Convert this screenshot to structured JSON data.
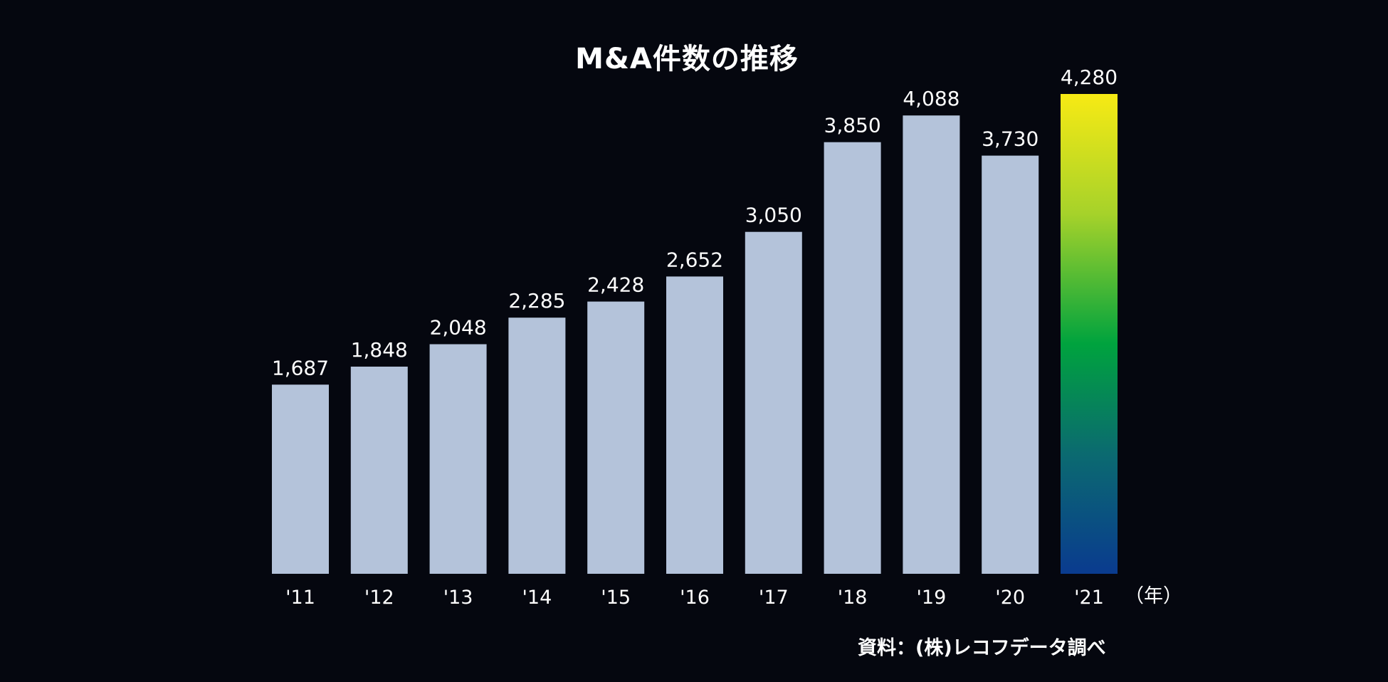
{
  "chart_data": {
    "type": "bar",
    "title": "M&A件数の推移",
    "categories": [
      "'11",
      "'12",
      "'13",
      "'14",
      "'15",
      "'16",
      "'17",
      "'18",
      "'19",
      "'20",
      "'21"
    ],
    "values": [
      1687,
      1848,
      2048,
      2285,
      2428,
      2652,
      3050,
      3850,
      4088,
      3730,
      4280
    ],
    "value_labels": [
      "1,687",
      "1,848",
      "2,048",
      "2,285",
      "2,428",
      "2,652",
      "3,050",
      "3,850",
      "4,088",
      "3,730",
      "4,280"
    ],
    "x_unit_label": "（年）",
    "xlabel": "",
    "ylabel": "",
    "ylim": [
      0,
      4280
    ],
    "grid": false,
    "highlight_index": 10,
    "source": "資料：(株)レコフデータ調べ"
  },
  "colors": {
    "background": "#05070f",
    "bar": "#b4c3da",
    "text": "#ffffff",
    "highlight_gradient": [
      "#f7ea14",
      "#a6d22a",
      "#00a33e",
      "#0b6a70",
      "#0a3b8f"
    ]
  }
}
